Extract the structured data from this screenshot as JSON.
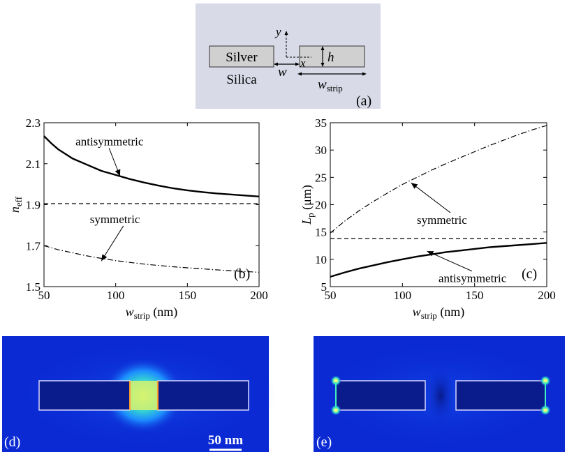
{
  "schematic": {
    "label_silver": "Silver",
    "label_silica": "Silica",
    "label_w": "w",
    "label_h": "h",
    "label_x": "x",
    "label_y": "y",
    "label_wstrip": "w",
    "label_wstrip_sub": "strip",
    "panel": "(a)",
    "bg_color": "#d9dae8",
    "strip_color": "#d0d0d0"
  },
  "field_maps": {
    "d": {
      "panel": "(d)",
      "scalebar_label": "50 nm"
    },
    "e": {
      "panel": "(e)"
    },
    "colors": {
      "background": "#0b2ad4",
      "strip": "#0a1c8c",
      "outline": "#d8d8ff",
      "hot": "#f2ff5a"
    }
  },
  "chart_data": [
    {
      "id": "b",
      "type": "line",
      "panel": "(b)",
      "xlabel": "w",
      "xlabel_sub": "strip",
      "xlabel_unit": " (nm)",
      "ylabel": "n",
      "ylabel_sub": "eff",
      "xlim": [
        50,
        200
      ],
      "ylim": [
        1.5,
        2.3
      ],
      "xticks": [
        50,
        100,
        150,
        200
      ],
      "yticks": [
        1.5,
        1.7,
        1.9,
        2.1,
        2.3
      ],
      "ytick_labels": [
        "1.5",
        "1.7",
        "1.9",
        "2.1",
        "2.3"
      ],
      "series": [
        {
          "name": "antisymmetric",
          "style": "solid",
          "x": [
            50,
            55,
            60,
            70,
            80,
            90,
            100,
            110,
            120,
            130,
            140,
            150,
            160,
            170,
            180,
            190,
            200
          ],
          "y": [
            2.235,
            2.2,
            2.17,
            2.125,
            2.095,
            2.065,
            2.045,
            2.025,
            2.008,
            1.993,
            1.98,
            1.97,
            1.962,
            1.955,
            1.95,
            1.945,
            1.94
          ]
        },
        {
          "name": "",
          "style": "dashed",
          "x": [
            50,
            200
          ],
          "y": [
            1.905,
            1.905
          ]
        },
        {
          "name": "symmetric",
          "style": "dashdot",
          "x": [
            50,
            60,
            70,
            80,
            90,
            100,
            110,
            120,
            130,
            140,
            150,
            160,
            170,
            180,
            190,
            200
          ],
          "y": [
            1.7,
            1.68,
            1.665,
            1.65,
            1.638,
            1.627,
            1.618,
            1.61,
            1.603,
            1.597,
            1.592,
            1.587,
            1.582,
            1.578,
            1.574,
            1.57
          ]
        }
      ],
      "annotations": [
        {
          "text": "antisymmetric",
          "tx": 72,
          "ty": 2.19,
          "ax": 103,
          "ay": 2.04
        },
        {
          "text": "symmetric",
          "tx": 82,
          "ty": 1.81,
          "ax": 90,
          "ay": 1.625
        }
      ]
    },
    {
      "id": "c",
      "type": "line",
      "panel": "(c)",
      "xlabel": "w",
      "xlabel_sub": "strip",
      "xlabel_unit": " (nm)",
      "ylabel": "L",
      "ylabel_sub": "p",
      "ylabel_unit": " (μm)",
      "xlim": [
        50,
        200
      ],
      "ylim": [
        5,
        35
      ],
      "xticks": [
        50,
        100,
        150,
        200
      ],
      "yticks": [
        5,
        10,
        15,
        20,
        25,
        30,
        35
      ],
      "ytick_labels": [
        "5",
        "10",
        "15",
        "20",
        "25",
        "30",
        "35"
      ],
      "series": [
        {
          "name": "symmetric",
          "style": "dashdot",
          "x": [
            50,
            60,
            70,
            80,
            90,
            100,
            110,
            120,
            130,
            140,
            150,
            160,
            170,
            180,
            190,
            200
          ],
          "y": [
            14.8,
            17.0,
            18.9,
            20.6,
            22.2,
            23.7,
            25.0,
            26.3,
            27.5,
            28.6,
            29.7,
            30.8,
            31.8,
            32.8,
            33.7,
            34.5
          ]
        },
        {
          "name": "",
          "style": "dashed",
          "x": [
            50,
            200
          ],
          "y": [
            13.8,
            13.8
          ]
        },
        {
          "name": "antisymmetric",
          "style": "solid",
          "x": [
            50,
            60,
            70,
            80,
            90,
            100,
            110,
            120,
            130,
            140,
            150,
            160,
            170,
            180,
            190,
            200
          ],
          "y": [
            6.8,
            7.6,
            8.3,
            8.9,
            9.5,
            10.0,
            10.5,
            10.9,
            11.3,
            11.6,
            11.9,
            12.2,
            12.4,
            12.6,
            12.8,
            13.0
          ]
        }
      ],
      "annotations": [
        {
          "text": "symmetric",
          "tx": 110,
          "ty": 16.5,
          "ax": 106,
          "ay": 24.0
        },
        {
          "text": "antisymmetric",
          "tx": 125,
          "ty": 5.8,
          "ax": 117,
          "ay": 11.5
        }
      ]
    }
  ]
}
